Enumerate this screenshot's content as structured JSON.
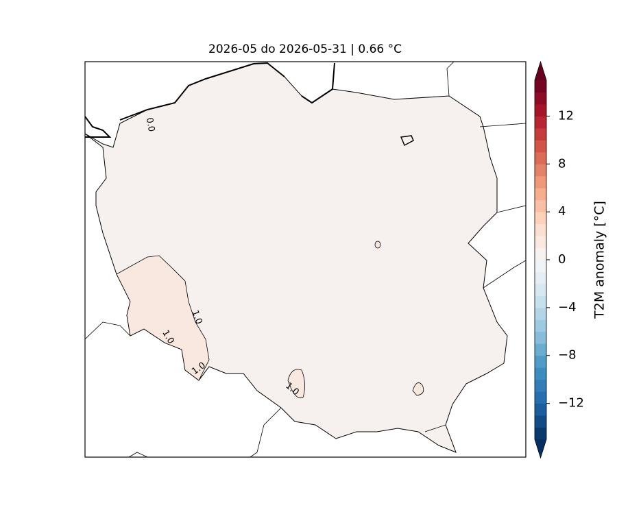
{
  "title": "2026-05 do 2026-05-31 | 0.66 °C",
  "colorbar": {
    "label": "T2M anomaly [°C]",
    "lim": [
      -15,
      15
    ],
    "step": 1,
    "colormap": [
      "#053061",
      "#2166ac",
      "#4393c3",
      "#92c5de",
      "#d1e5f0",
      "#f7f7f7",
      "#fddbc7",
      "#f4a582",
      "#d6604d",
      "#b2182b",
      "#67001f"
    ],
    "ticks": [
      {
        "value": -12,
        "label": "−12"
      },
      {
        "value": -8,
        "label": "−8"
      },
      {
        "value": -4,
        "label": "−4"
      },
      0,
      4,
      8,
      12
    ]
  },
  "contour_labels": [
    "0.0",
    "1.0",
    "1.0",
    "1.0",
    "1.0"
  ]
}
